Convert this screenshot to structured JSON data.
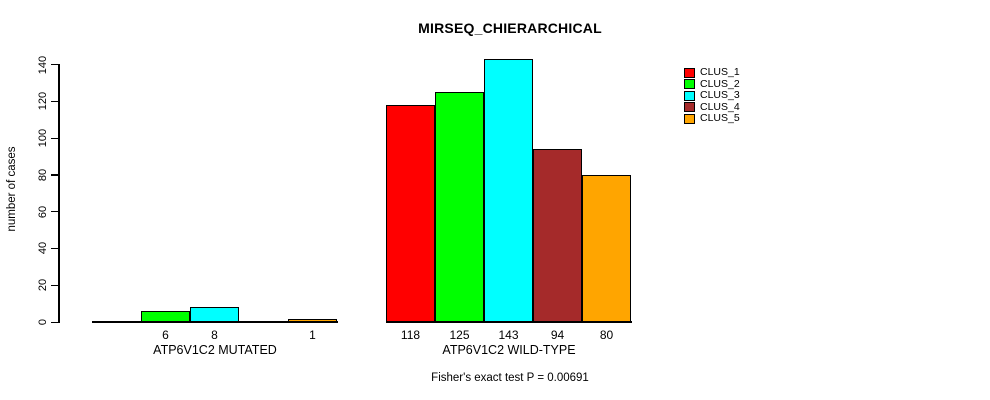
{
  "title": "MIRSEQ_CHIERARCHICAL",
  "y_axis_label": "number of cases",
  "footer": "Fisher's exact test P = 0.00691",
  "legend": {
    "items": [
      {
        "label": "CLUS_1",
        "color": "#FF0000"
      },
      {
        "label": "CLUS_2",
        "color": "#00FF00"
      },
      {
        "label": "CLUS_3",
        "color": "#00FFFF"
      },
      {
        "label": "CLUS_4",
        "color": "#A52A2A"
      },
      {
        "label": "CLUS_5",
        "color": "#FFA500"
      }
    ]
  },
  "chart_data": {
    "type": "bar",
    "title": "MIRSEQ_CHIERARCHICAL",
    "ylabel": "number of cases",
    "ylim": [
      0,
      143
    ],
    "y_ticks": [
      0,
      20,
      40,
      60,
      80,
      100,
      120,
      140
    ],
    "grid": false,
    "legend_position": "top-right",
    "groups": [
      "ATP6V1C2 MUTATED",
      "ATP6V1C2 WILD-TYPE"
    ],
    "series": [
      {
        "name": "CLUS_1",
        "color": "#FF0000",
        "values": [
          0,
          118
        ]
      },
      {
        "name": "CLUS_2",
        "color": "#00FF00",
        "values": [
          6,
          125
        ]
      },
      {
        "name": "CLUS_3",
        "color": "#00FFFF",
        "values": [
          8,
          143
        ]
      },
      {
        "name": "CLUS_4",
        "color": "#A52A2A",
        "values": [
          0,
          94
        ]
      },
      {
        "name": "CLUS_5",
        "color": "#FFA500",
        "values": [
          1,
          80
        ]
      }
    ],
    "bar_labels": [
      [
        "",
        "6",
        "8",
        "",
        "1"
      ],
      [
        "118",
        "125",
        "143",
        "94",
        "80"
      ]
    ],
    "annotation": "Fisher's exact test P = 0.00691"
  }
}
